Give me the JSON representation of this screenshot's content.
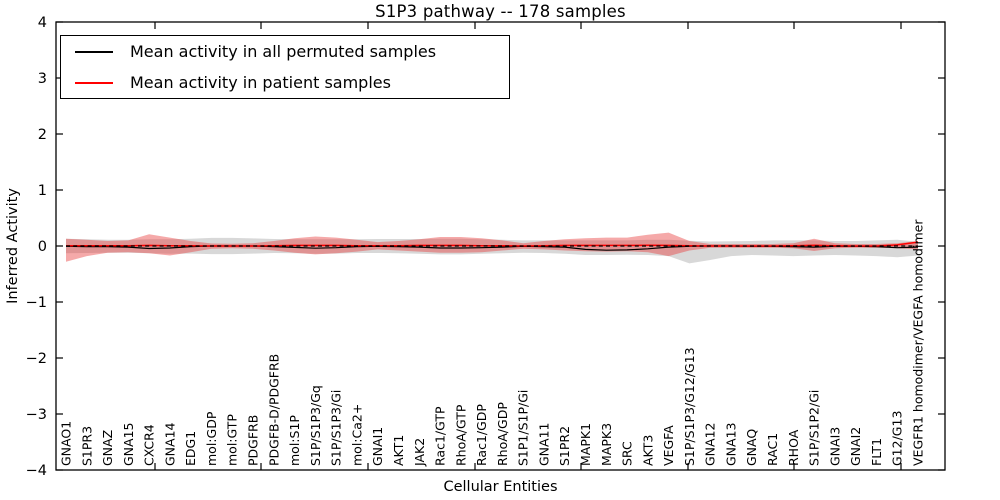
{
  "chart_data": {
    "type": "line",
    "title": "S1P3 pathway -- 178 samples",
    "xlabel": "Cellular Entities",
    "ylabel": "Inferred Activity",
    "ylim": [
      -4,
      4
    ],
    "yticks": [
      4,
      3,
      2,
      1,
      0,
      -1,
      -2,
      -3,
      -4
    ],
    "grid": false,
    "legend": {
      "position": "upper left",
      "entries": [
        {
          "label": "Mean activity in all permuted samples",
          "color": "#000000"
        },
        {
          "label": "Mean activity in patient samples",
          "color": "#ff0000"
        }
      ]
    },
    "categories": [
      "GNAO1",
      "S1PR3",
      "GNAZ",
      "GNA15",
      "CXCR4",
      "GNA14",
      "EDG1",
      "mol:GDP",
      "mol:GTP",
      "PDGFRB",
      "PDGFB-D/PDGFRB",
      "mol:S1P",
      "S1P/S1P3/Gq",
      "S1P/S1P3/Gi",
      "mol:Ca2+",
      "GNAI1",
      "AKT1",
      "JAK2",
      "Rac1/GTP",
      "RhoA/GTP",
      "Rac1/GDP",
      "RhoA/GDP",
      "S1P1/S1P/Gi",
      "GNA11",
      "S1PR2",
      "MAPK1",
      "MAPK3",
      "SRC",
      "AKT3",
      "VEGFA",
      "S1P/S1P3/G12/G13",
      "GNA12",
      "GNA13",
      "GNAQ",
      "RAC1",
      "RHOA",
      "S1P/S1P2/Gi",
      "GNAI3",
      "GNAI2",
      "FLT1",
      "G12/G13",
      "VEGFR1 homodimer/VEGFA homodimer"
    ],
    "series": [
      {
        "name": "Mean activity in all permuted samples",
        "kind": "line",
        "style": "solid",
        "color": "#000000",
        "values": [
          -0.005,
          -0.01,
          -0.01,
          -0.02,
          -0.045,
          -0.035,
          -0.01,
          0,
          0,
          0,
          -0.01,
          -0.025,
          -0.04,
          -0.03,
          -0.01,
          -0.005,
          -0.01,
          -0.02,
          -0.035,
          -0.035,
          -0.03,
          -0.02,
          -0.005,
          -0.01,
          -0.02,
          -0.06,
          -0.075,
          -0.07,
          -0.05,
          -0.02,
          -0.005,
          0,
          0,
          -0.005,
          -0.005,
          -0.01,
          -0.02,
          -0.005,
          -0.005,
          -0.01,
          -0.03,
          -0.02
        ]
      },
      {
        "name": "Mean activity in patient samples",
        "kind": "line",
        "style": "solid",
        "color": "#ff0000",
        "values": [
          0.005,
          0.005,
          0.005,
          0.005,
          0.01,
          0.005,
          0.005,
          0,
          0,
          0,
          0.005,
          0.01,
          0.01,
          0.01,
          0.005,
          0.005,
          0.005,
          0.01,
          0.01,
          0.01,
          0.005,
          0.005,
          0,
          0.005,
          0.01,
          0.01,
          0.01,
          0.01,
          0.015,
          0.01,
          0.005,
          0,
          0,
          0,
          0,
          0.005,
          0.015,
          0.005,
          0,
          0,
          0.02,
          0.07
        ]
      },
      {
        "name": "Permuted samples std band",
        "kind": "band",
        "color": "#a8a8a8",
        "opacity": 0.45,
        "upper": [
          0.13,
          0.12,
          0.11,
          0.11,
          0.12,
          0.12,
          0.13,
          0.145,
          0.145,
          0.135,
          0.125,
          0.12,
          0.12,
          0.12,
          0.12,
          0.125,
          0.125,
          0.125,
          0.13,
          0.13,
          0.12,
          0.11,
          0.1,
          0.1,
          0.1,
          0.1,
          0.1,
          0.1,
          0.11,
          0.11,
          0.095,
          0.08,
          0.085,
          0.09,
          0.1,
          0.1,
          0.1,
          0.09,
          0.09,
          0.1,
          0.11,
          0.075
        ],
        "lower": [
          -0.13,
          -0.125,
          -0.12,
          -0.12,
          -0.13,
          -0.14,
          -0.135,
          -0.145,
          -0.145,
          -0.135,
          -0.125,
          -0.13,
          -0.14,
          -0.135,
          -0.125,
          -0.125,
          -0.13,
          -0.14,
          -0.15,
          -0.15,
          -0.14,
          -0.13,
          -0.12,
          -0.125,
          -0.14,
          -0.16,
          -0.16,
          -0.155,
          -0.16,
          -0.18,
          -0.31,
          -0.25,
          -0.18,
          -0.16,
          -0.17,
          -0.18,
          -0.17,
          -0.16,
          -0.17,
          -0.18,
          -0.2,
          -0.17
        ]
      },
      {
        "name": "Patient samples std band",
        "kind": "band",
        "color": "#e84040",
        "opacity": 0.45,
        "upper": [
          0.13,
          0.11,
          0.09,
          0.1,
          0.21,
          0.15,
          0.09,
          0.045,
          0.04,
          0.05,
          0.09,
          0.14,
          0.17,
          0.15,
          0.11,
          0.07,
          0.09,
          0.12,
          0.16,
          0.16,
          0.14,
          0.1,
          0.05,
          0.09,
          0.12,
          0.14,
          0.15,
          0.15,
          0.2,
          0.24,
          0.09,
          0.035,
          0.035,
          0.035,
          0.035,
          0.05,
          0.13,
          0.05,
          0.035,
          0.035,
          0.05,
          0.09
        ],
        "lower": [
          -0.28,
          -0.18,
          -0.12,
          -0.11,
          -0.13,
          -0.17,
          -0.11,
          -0.05,
          -0.04,
          -0.05,
          -0.08,
          -0.12,
          -0.15,
          -0.13,
          -0.1,
          -0.06,
          -0.08,
          -0.1,
          -0.12,
          -0.12,
          -0.11,
          -0.08,
          -0.05,
          -0.06,
          -0.08,
          -0.095,
          -0.1,
          -0.095,
          -0.11,
          -0.18,
          -0.08,
          -0.03,
          -0.03,
          -0.03,
          -0.03,
          -0.04,
          -0.09,
          -0.04,
          -0.03,
          -0.03,
          -0.04,
          -0.06
        ]
      },
      {
        "name": "Zero reference",
        "kind": "dashed-zero-line",
        "style": "dashed",
        "color": "#000000",
        "value": 0
      }
    ]
  }
}
